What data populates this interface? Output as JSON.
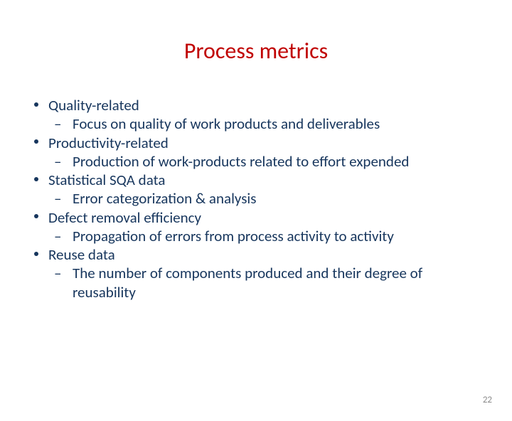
{
  "title": "Process metrics",
  "title_color": "#c00000",
  "title_fontsize": 32,
  "body_color": "#17365d",
  "body_fontsize": 21,
  "body_lineheight": 1.25,
  "bullet_color": "#17365d",
  "dash_char": "–",
  "page_number": "22",
  "page_number_color": "#8a8a8a",
  "page_number_fontsize": 13,
  "items": [
    {
      "text": "Quality-related",
      "sub": [
        "Focus on quality of work products and deliverables"
      ]
    },
    {
      "text": "Productivity-related",
      "sub": [
        "Production of work-products related to effort expended"
      ]
    },
    {
      "text": "Statistical SQA data",
      "sub": [
        " Error categorization & analysis"
      ]
    },
    {
      "text": "Defect removal efficiency",
      "sub": [
        " Propagation of errors from process activity to activity"
      ]
    },
    {
      "text": "Reuse data",
      "sub": [
        "The number of components produced and their degree of reusability"
      ]
    }
  ]
}
